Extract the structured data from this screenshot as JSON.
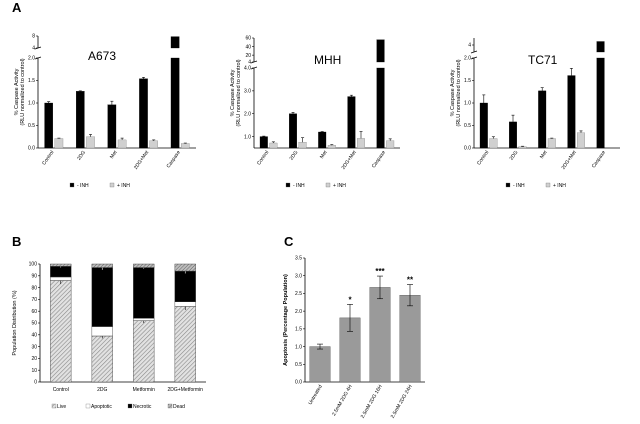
{
  "panels": {
    "A": "A",
    "B": "B",
    "C": "C"
  },
  "chart_data": [
    {
      "id": "A673",
      "type": "bar",
      "title": "A673",
      "ylabel_line1": "% Caspase Activity",
      "ylabel_line2": "(RLU normalized to control)",
      "categories": [
        "Control",
        "2DG",
        "Met",
        "2DG+Met",
        "Caspase"
      ],
      "lower_ticks": [
        "0.0",
        "0.5",
        "1.0",
        "1.5",
        "2.0"
      ],
      "upper_ticks": [
        "4",
        "8"
      ],
      "ylim_lower": [
        0,
        2.0
      ],
      "ylim_upper": [
        4,
        8
      ],
      "series": [
        {
          "name": "- INH",
          "color": "#000000",
          "values": [
            1.0,
            1.26,
            0.96,
            1.54,
            7.8
          ],
          "errors": [
            0.03,
            0.01,
            0.08,
            0.03,
            0.05
          ]
        },
        {
          "name": "+ INH",
          "color": "#d0d0d0",
          "values": [
            0.21,
            0.25,
            0.18,
            0.16,
            0.1
          ],
          "errors": [
            0.01,
            0.05,
            0.04,
            0.02,
            0.01
          ]
        }
      ],
      "legend": "bottom"
    },
    {
      "id": "MHH",
      "type": "bar",
      "title": "MHH",
      "ylabel_line1": "% Caspase Activity",
      "ylabel_line2": "(RLU normalized to control)",
      "categories": [
        "Control",
        "2DG",
        "Met",
        "2DG+Met",
        "Caspase"
      ],
      "lower_ticks": [
        "1.0",
        "2.0",
        "3.0",
        "4.0"
      ],
      "upper_ticks": [
        "4",
        "20",
        "40",
        "60"
      ],
      "ylim_lower": [
        0.5,
        4.0
      ],
      "ylim_upper": [
        4,
        60
      ],
      "series": [
        {
          "name": "- INH",
          "color": "#000000",
          "values": [
            1.0,
            2.0,
            1.2,
            2.75,
            56
          ],
          "errors": [
            0.02,
            0.06,
            0.02,
            0.06,
            0.5
          ]
        },
        {
          "name": "+ INH",
          "color": "#d0d0d0",
          "values": [
            0.72,
            0.75,
            0.62,
            0.92,
            0.82
          ],
          "errors": [
            0.05,
            0.2,
            0.03,
            0.3,
            0.08
          ]
        }
      ],
      "legend": "bottom"
    },
    {
      "id": "TC71",
      "type": "bar",
      "title": "TC71",
      "ylabel_line1": "% Caspase Activity",
      "ylabel_line2": "(RLU normalized to control)",
      "categories": [
        "Control",
        "2DG",
        "Met",
        "2DG+Met",
        "Caspase"
      ],
      "lower_ticks": [
        "0.0",
        "0.5",
        "1.0",
        "1.5",
        "2.0"
      ],
      "upper_ticks": [
        "4"
      ],
      "ylim_lower": [
        0,
        2.0
      ],
      "ylim_upper": [
        3,
        5
      ],
      "series": [
        {
          "name": "- INH",
          "color": "#000000",
          "values": [
            1.0,
            0.58,
            1.27,
            1.61,
            4.5
          ],
          "errors": [
            0.18,
            0.15,
            0.07,
            0.16,
            0.05
          ]
        },
        {
          "name": "+ INH",
          "color": "#d0d0d0",
          "values": [
            0.21,
            0.03,
            0.21,
            0.34,
            0.0
          ],
          "errors": [
            0.04,
            0.01,
            0.01,
            0.04,
            0.0
          ]
        }
      ],
      "legend": "bottom"
    },
    {
      "id": "B",
      "type": "bar",
      "stacked": true,
      "ylabel": "Population Distribution (%)",
      "categories": [
        "Control",
        "2DG",
        "Metformin",
        "2DG+Metformin"
      ],
      "yticks": [
        "0",
        "10",
        "20",
        "30",
        "40",
        "50",
        "60",
        "70",
        "80",
        "90",
        "100"
      ],
      "ylim": [
        0,
        100
      ],
      "series": [
        {
          "name": "Live",
          "color": "#c8c8c8",
          "pattern": "hatch",
          "values": [
            86,
            39,
            52,
            64
          ],
          "errors": [
            3,
            2,
            2,
            3
          ]
        },
        {
          "name": "Apoptotic",
          "color": "#ffffff",
          "values": [
            3,
            8,
            2,
            4
          ],
          "errors": [
            0,
            0,
            0,
            0
          ]
        },
        {
          "name": "Necrotic",
          "color": "#000000",
          "values": [
            9,
            50,
            43,
            26
          ],
          "errors": [
            1,
            2,
            1,
            2
          ]
        },
        {
          "name": "Dead",
          "color": "#a8a8a8",
          "pattern": "hatch",
          "values": [
            2,
            3,
            3,
            6
          ],
          "errors": [
            0,
            0,
            0,
            0
          ]
        }
      ],
      "legend": "bottom"
    },
    {
      "id": "C",
      "type": "bar",
      "ylabel": "Apoptosis (Percentage Population)",
      "categories": [
        "Untreated",
        "2.5mM 2DG 4H",
        "2.5mM 2DG 16H",
        "2.5mM 2DG 24H"
      ],
      "yticks": [
        "0.0",
        "0.5",
        "1.0",
        "1.5",
        "2.0",
        "2.5",
        "3.0",
        "3.5"
      ],
      "ylim": [
        0,
        3.5
      ],
      "values": [
        1.0,
        1.81,
        2.67,
        2.45
      ],
      "errors": [
        0.07,
        0.38,
        0.32,
        0.3
      ],
      "annotations": [
        "",
        "*",
        "***",
        "**"
      ],
      "color": "#9a9a9a"
    }
  ]
}
